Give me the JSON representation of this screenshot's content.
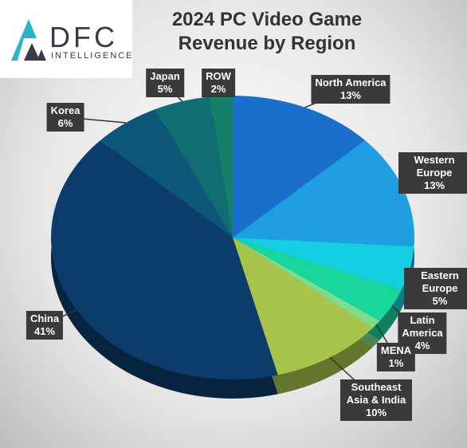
{
  "logo": {
    "brand": "DFC",
    "tagline": "INTELLIGENCE"
  },
  "chart_data": {
    "type": "pie",
    "title": "2024 PC Video Game Revenue by Region",
    "categories": [
      "North America",
      "Western Europe",
      "Eastern Europe",
      "Latin America",
      "MENA",
      "Southeast Asia & India",
      "China",
      "Korea",
      "Japan",
      "ROW"
    ],
    "values": [
      13,
      13,
      5,
      4,
      1,
      10,
      41,
      6,
      5,
      2
    ],
    "value_labels": [
      "13%",
      "13%",
      "5%",
      "4%",
      "1%",
      "10%",
      "41%",
      "6%",
      "5%",
      "2%"
    ],
    "colors": [
      "#1a6fcc",
      "#1f9fe2",
      "#14cfe2",
      "#19d69c",
      "#7fdc8c",
      "#a8c44c",
      "#0b3c6b",
      "#0c5778",
      "#106e72",
      "#14806a"
    ]
  }
}
